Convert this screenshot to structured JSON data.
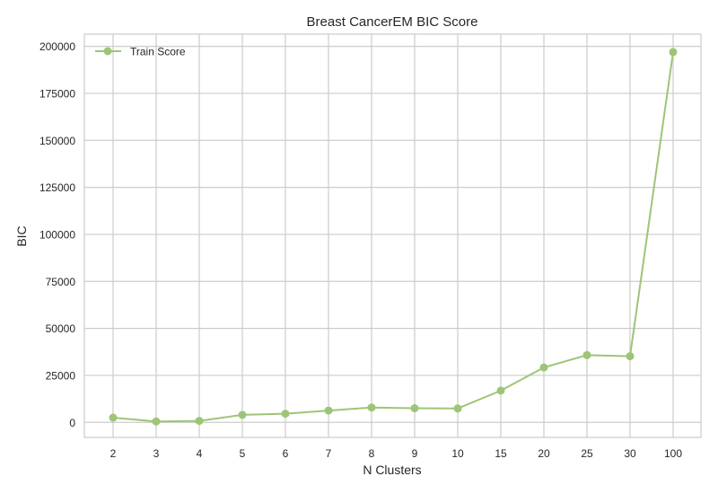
{
  "chart_data": {
    "type": "line",
    "title": "Breast CancerEM BIC Score",
    "xlabel": "N Clusters",
    "ylabel": "BIC",
    "categories": [
      "2",
      "3",
      "4",
      "5",
      "6",
      "7",
      "8",
      "9",
      "10",
      "15",
      "20",
      "25",
      "30",
      "100"
    ],
    "series": [
      {
        "name": "Train Score",
        "color": "#9dc577",
        "values": [
          2500,
          500,
          800,
          4000,
          4600,
          6300,
          7900,
          7500,
          7400,
          16900,
          29200,
          35800,
          35200,
          197000
        ]
      }
    ],
    "yticks": [
      0,
      25000,
      50000,
      75000,
      100000,
      125000,
      150000,
      175000,
      200000
    ],
    "ylim": [
      -8000,
      206500
    ],
    "grid": true,
    "legend": "top-left",
    "colors": {
      "grid": "#cccccc",
      "frame": "#cccccc",
      "text": "#262626"
    }
  }
}
